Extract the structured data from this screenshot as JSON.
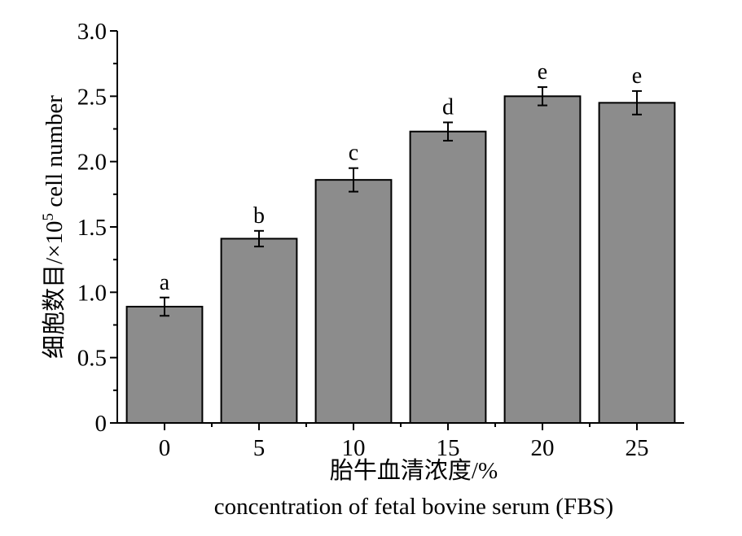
{
  "chart_data": {
    "type": "bar",
    "categories": [
      "0",
      "5",
      "10",
      "15",
      "20",
      "25"
    ],
    "values": [
      0.89,
      1.41,
      1.86,
      2.23,
      2.5,
      2.45
    ],
    "errors": [
      0.07,
      0.06,
      0.09,
      0.07,
      0.07,
      0.09
    ],
    "significance_letters": [
      "a",
      "b",
      "c",
      "d",
      "e",
      "e"
    ],
    "ylim": [
      0,
      3.0
    ],
    "y_ticks": [
      "0",
      "0.5",
      "1.0",
      "1.5",
      "2.0",
      "2.5",
      "3.0"
    ],
    "y_tick_values": [
      0,
      0.5,
      1.0,
      1.5,
      2.0,
      2.5,
      3.0
    ],
    "ylabel": {
      "prefix": "细胞数目/×10",
      "superscript": "5",
      "suffix": " cell number"
    },
    "xlabel_cn": "胎牛血清浓度/%",
    "xlabel_en": "concentration of fetal bovine serum (FBS)",
    "bar_color": "#8c8c8c",
    "grid": false
  }
}
